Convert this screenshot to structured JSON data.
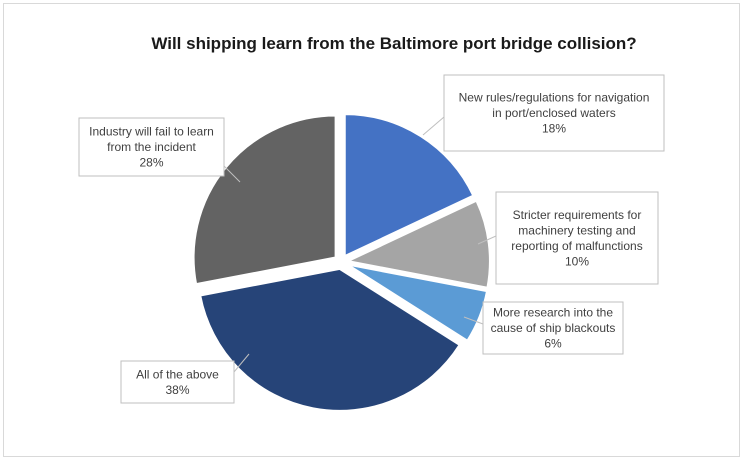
{
  "chart_data": {
    "type": "pie",
    "title": "Will shipping learn from the Baltimore port bridge collision?",
    "slices": [
      {
        "label": "New rules/regulations for navigation in port/enclosed waters",
        "label_lines": [
          "New rules/regulations for navigation",
          "in port/enclosed waters"
        ],
        "value": 18,
        "value_label": "18%",
        "color": "#4472c4",
        "exploded": true
      },
      {
        "label": "Stricter requirements for machinery testing and reporting of malfunctions",
        "label_lines": [
          "Stricter requirements for",
          "machinery testing and",
          "reporting of malfunctions"
        ],
        "value": 10,
        "value_label": "10%",
        "color": "#a5a5a5",
        "exploded": true
      },
      {
        "label": "More research into the cause of ship blackouts",
        "label_lines": [
          "More research into the",
          "cause of ship blackouts"
        ],
        "value": 6,
        "value_label": "6%",
        "color": "#5b9bd5",
        "exploded": true
      },
      {
        "label": "All of the above",
        "label_lines": [
          "All of the above"
        ],
        "value": 38,
        "value_label": "38%",
        "color": "#264478",
        "exploded": true
      },
      {
        "label": "Industry will fail to learn from the incident",
        "label_lines": [
          "Industry will fail to learn",
          "from the incident"
        ],
        "value": 28,
        "value_label": "28%",
        "color": "#636363",
        "exploded": true
      }
    ],
    "start_angle": "12 o'clock",
    "direction": "clockwise",
    "legend": "none"
  }
}
